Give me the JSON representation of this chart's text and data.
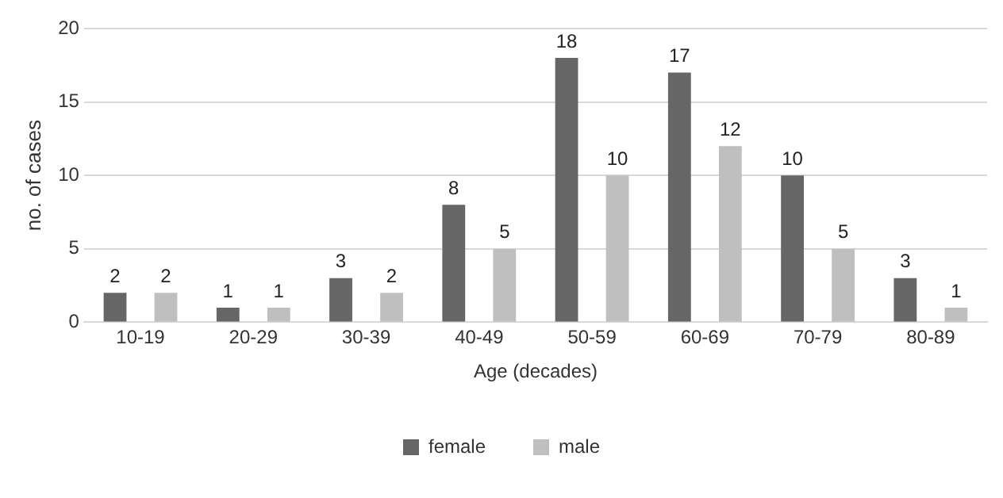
{
  "chart_data": {
    "type": "bar",
    "xlabel": "Age (decades)",
    "ylabel": "no. of cases",
    "categories": [
      "10-19",
      "20-29",
      "30-39",
      "40-49",
      "50-59",
      "60-69",
      "70-79",
      "80-89"
    ],
    "series": [
      {
        "name": "female",
        "color": "#666666",
        "values": [
          2,
          1,
          3,
          8,
          18,
          17,
          10,
          3
        ]
      },
      {
        "name": "male",
        "color": "#bfbfbf",
        "values": [
          2,
          1,
          2,
          5,
          10,
          12,
          5,
          1
        ]
      }
    ],
    "ylim": [
      0,
      20
    ],
    "yticks": [
      0,
      5,
      10,
      15,
      20
    ],
    "grid": "y",
    "legend": "bottom",
    "data_labels": true
  }
}
